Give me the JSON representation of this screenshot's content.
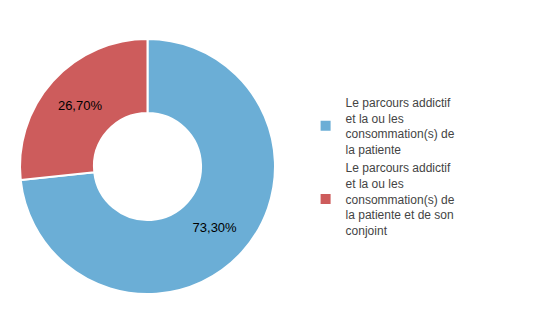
{
  "chart_data": {
    "type": "donut",
    "categories": [
      "Le parcours addictif\net la ou les\nconsommation(s) de\nla patiente",
      "Le parcours addictif\net la ou les\nconsommation(s) de\nla patiente et de son\nconjoint"
    ],
    "values": [
      73.3,
      26.7
    ],
    "value_labels": [
      "73,30%",
      "26,70%"
    ],
    "colors": [
      "#6baed6",
      "#cd5c5c"
    ],
    "data_labels": true,
    "legend": "right"
  }
}
